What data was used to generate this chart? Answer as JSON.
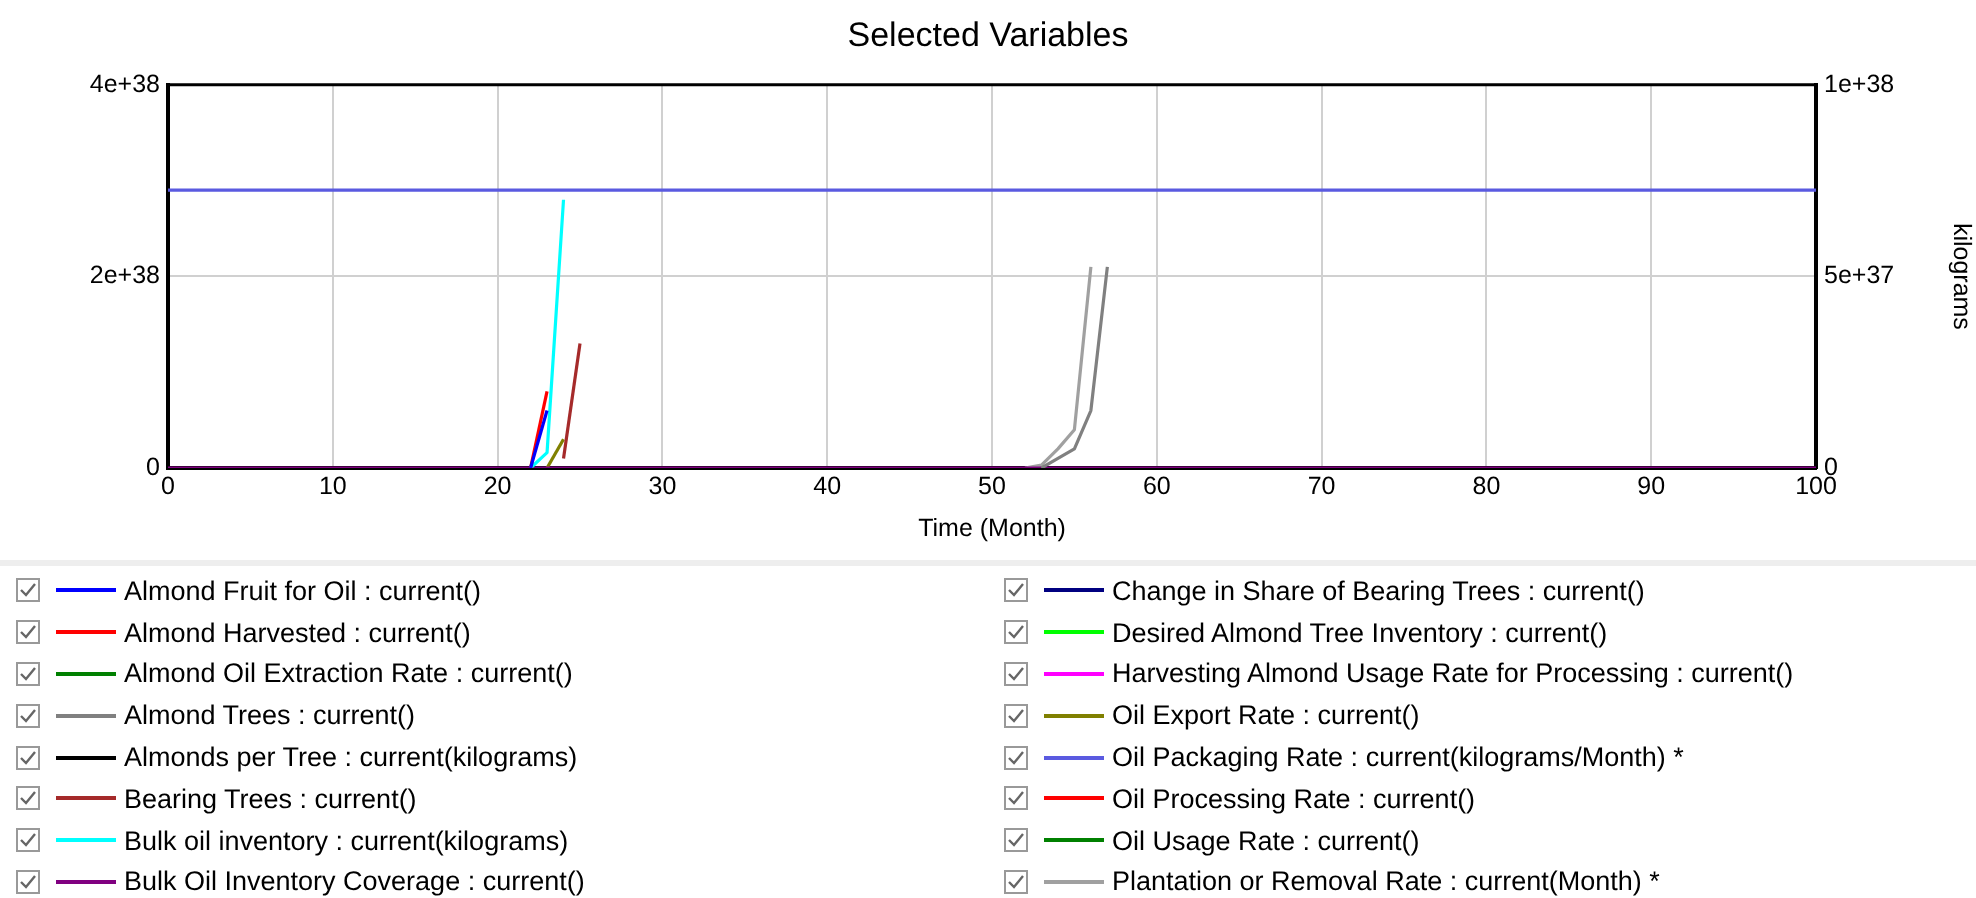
{
  "chart_data": {
    "type": "line",
    "title": "Selected Variables",
    "xlabel": "Time (Month)",
    "y2label": "kilograms",
    "xlim": [
      0,
      100
    ],
    "xticks": [
      0,
      10,
      20,
      30,
      40,
      50,
      60,
      70,
      80,
      90,
      100
    ],
    "ylim": [
      0,
      4e+38
    ],
    "yticks": [
      0,
      {
        "value": 2e+38,
        "label": "2e+38"
      },
      {
        "value": 4e+38,
        "label": "4e+38"
      }
    ],
    "y2lim": [
      0,
      1e+38
    ],
    "y2ticks": [
      0,
      {
        "value": 5e+37,
        "label": "5e+37"
      },
      {
        "value": 1e+38,
        "label": "1e+38"
      }
    ],
    "grid": true,
    "legend": "bottom",
    "marker": "none",
    "line_style": "solid",
    "series": [
      {
        "name": "Almond Fruit for Oil : current()",
        "color": "#0000ff",
        "x": [
          22,
          23
        ],
        "values": [
          0,
          6e+37
        ]
      },
      {
        "name": "Almond Harvested : current()",
        "color": "#ff0000",
        "x": [
          22,
          23
        ],
        "values": [
          0,
          8e+37
        ]
      },
      {
        "name": "Almond Oil Extraction Rate : current()",
        "color": "#008000"
      },
      {
        "name": "Almond Trees : current()",
        "color": "#808080",
        "x": [
          53,
          54,
          55,
          56,
          57
        ],
        "values": [
          0,
          1e+37,
          2e+37,
          6e+37,
          2.1e+38
        ]
      },
      {
        "name": "Almonds per Tree : current(kilograms)",
        "color": "#000000",
        "axis": "y2"
      },
      {
        "name": "Bearing Trees : current()",
        "color": "#a52a2a",
        "x": [
          24,
          25
        ],
        "values": [
          1e+37,
          1.3e+38
        ]
      },
      {
        "name": "Bulk oil inventory : current(kilograms)",
        "color": "#00ffff",
        "axis": "y2",
        "x": [
          22,
          23,
          24
        ],
        "values": [
          0,
          4e+36,
          7e+37
        ]
      },
      {
        "name": "Bulk Oil Inventory Coverage : current()",
        "color": "#800080",
        "x": [
          0,
          100
        ],
        "values": [
          0,
          0
        ]
      },
      {
        "name": "Change in Share of Bearing Trees : current()",
        "color": "#000080"
      },
      {
        "name": "Desired Almond Tree Inventory : current()",
        "color": "#00ff00"
      },
      {
        "name": "Harvesting Almond Usage Rate for Processing : current()",
        "color": "#ff00ff"
      },
      {
        "name": "Oil Export Rate : current()",
        "color": "#808000",
        "x": [
          23,
          24
        ],
        "values": [
          0,
          3e+37
        ]
      },
      {
        "name": "Oil Packaging Rate : current(kilograms/Month) *",
        "color": "#5a5ae0",
        "x": [
          0,
          100
        ],
        "values": [
          2.9e+38,
          2.9e+38
        ]
      },
      {
        "name": "Oil Processing Rate : current()",
        "color": "#ff0000"
      },
      {
        "name": "Oil Usage Rate : current()",
        "color": "#008000"
      },
      {
        "name": "Plantation or Removal Rate : current(Month) *",
        "color": "#a0a0a0",
        "x": [
          52,
          53,
          54,
          55,
          56
        ],
        "values": [
          0,
          3e+36,
          2e+37,
          4e+37,
          2.1e+38
        ]
      }
    ]
  }
}
